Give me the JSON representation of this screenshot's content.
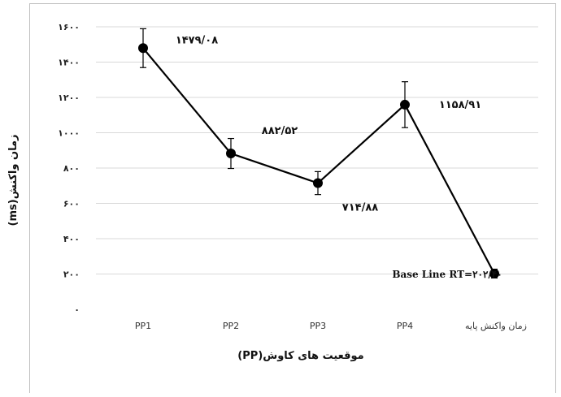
{
  "chart_data": {
    "type": "line",
    "xlabel": "موقعیت های کاوش(PP)",
    "ylabel": "زمان واکنش(ms)",
    "ylim": [
      0,
      1600
    ],
    "yticks": [
      0,
      200,
      400,
      600,
      800,
      1000,
      1200,
      1400,
      1600
    ],
    "ytick_labels": [
      "۰",
      "۲۰۰",
      "۴۰۰",
      "۶۰۰",
      "۸۰۰",
      "۱۰۰۰",
      "۱۲۰۰",
      "۱۴۰۰",
      "۱۶۰۰"
    ],
    "categories": [
      "PP1",
      "PP2",
      "PP3",
      "PP4",
      "زمان واکنش پایه"
    ],
    "values": [
      1479.08,
      882.52,
      714.88,
      1158.91,
      202.4
    ],
    "errors": [
      110,
      85,
      65,
      130,
      25
    ],
    "data_labels": [
      "۱۴۷۹/۰۸",
      "۸۸۲/۵۲",
      "۷۱۴/۸۸",
      "۱۱۵۸/۹۱",
      "Base Line RT=۲۰۲/۴۰"
    ],
    "grid": true,
    "colors": {
      "line": "#000000",
      "grid": "#d9d9d9",
      "marker": "#000000"
    }
  }
}
